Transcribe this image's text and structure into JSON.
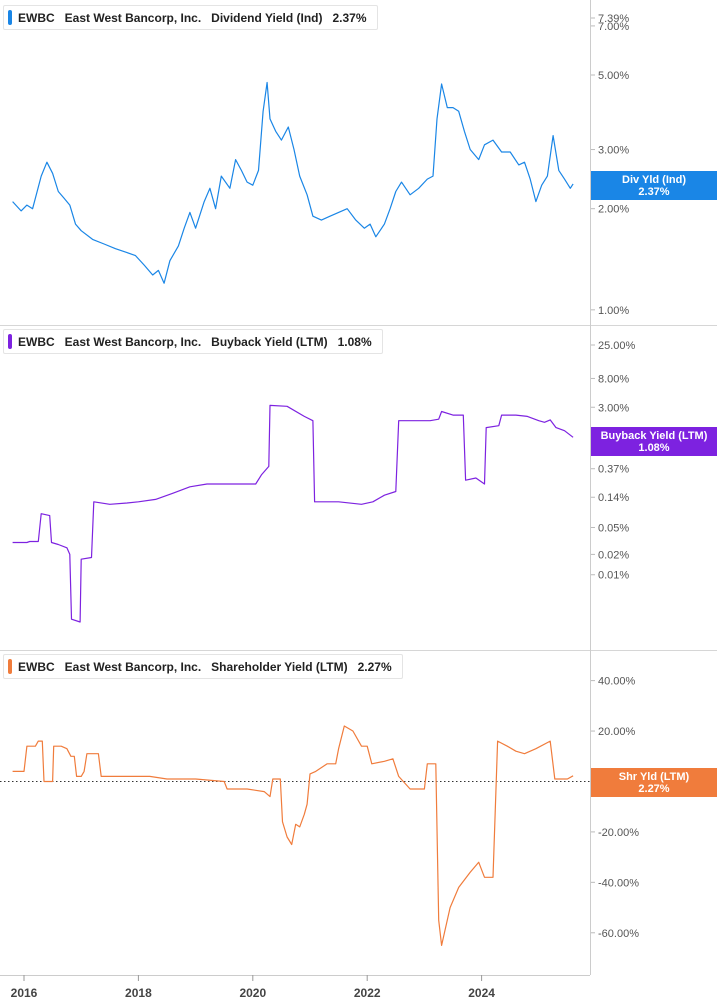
{
  "colors": {
    "dividend": "#1a86e6",
    "buyback": "#7d22e0",
    "shareholder": "#f07c3c",
    "divider": "#d6d6d6",
    "axis_text": "#555555"
  },
  "panels": [
    {
      "ticker": "EWBC",
      "company": "East West Bancorp, Inc.",
      "metric": "Dividend Yield (Ind)",
      "current": "2.37%",
      "tag_line1": "Div Yld (Ind)",
      "tag_line2": "2.37%"
    },
    {
      "ticker": "EWBC",
      "company": "East West Bancorp, Inc.",
      "metric": "Buyback Yield (LTM)",
      "current": "1.08%",
      "tag_line1": "Buyback Yield (LTM)",
      "tag_line2": "1.08%"
    },
    {
      "ticker": "EWBC",
      "company": "East West Bancorp, Inc.",
      "metric": "Shareholder Yield (LTM)",
      "current": "2.27%",
      "tag_line1": "Shr Yld (LTM)",
      "tag_line2": "2.27%"
    }
  ],
  "chart_data": [
    {
      "type": "line",
      "scale": "log",
      "series": [
        {
          "name": "Dividend Yield (Ind)",
          "points": [
            [
              2015.8,
              2.1
            ],
            [
              2015.95,
              1.97
            ],
            [
              2016.05,
              2.05
            ],
            [
              2016.15,
              2.0
            ],
            [
              2016.3,
              2.5
            ],
            [
              2016.4,
              2.75
            ],
            [
              2016.5,
              2.55
            ],
            [
              2016.6,
              2.25
            ],
            [
              2016.7,
              2.15
            ],
            [
              2016.8,
              2.05
            ],
            [
              2016.9,
              1.8
            ],
            [
              2017.0,
              1.72
            ],
            [
              2017.2,
              1.62
            ],
            [
              2017.4,
              1.57
            ],
            [
              2017.6,
              1.52
            ],
            [
              2017.8,
              1.48
            ],
            [
              2017.95,
              1.45
            ],
            [
              2018.1,
              1.36
            ],
            [
              2018.25,
              1.27
            ],
            [
              2018.35,
              1.31
            ],
            [
              2018.45,
              1.2
            ],
            [
              2018.55,
              1.4
            ],
            [
              2018.7,
              1.55
            ],
            [
              2018.8,
              1.75
            ],
            [
              2018.9,
              1.95
            ],
            [
              2019.0,
              1.75
            ],
            [
              2019.15,
              2.1
            ],
            [
              2019.25,
              2.3
            ],
            [
              2019.35,
              2.0
            ],
            [
              2019.45,
              2.5
            ],
            [
              2019.6,
              2.3
            ],
            [
              2019.7,
              2.8
            ],
            [
              2019.8,
              2.6
            ],
            [
              2019.9,
              2.4
            ],
            [
              2020.0,
              2.35
            ],
            [
              2020.1,
              2.6
            ],
            [
              2020.18,
              3.9
            ],
            [
              2020.25,
              4.75
            ],
            [
              2020.3,
              3.7
            ],
            [
              2020.4,
              3.4
            ],
            [
              2020.5,
              3.2
            ],
            [
              2020.62,
              3.5
            ],
            [
              2020.72,
              3.0
            ],
            [
              2020.82,
              2.5
            ],
            [
              2020.95,
              2.2
            ],
            [
              2021.05,
              1.9
            ],
            [
              2021.2,
              1.85
            ],
            [
              2021.35,
              1.9
            ],
            [
              2021.5,
              1.95
            ],
            [
              2021.65,
              2.0
            ],
            [
              2021.8,
              1.85
            ],
            [
              2021.95,
              1.75
            ],
            [
              2022.05,
              1.8
            ],
            [
              2022.15,
              1.65
            ],
            [
              2022.3,
              1.8
            ],
            [
              2022.4,
              2.0
            ],
            [
              2022.5,
              2.25
            ],
            [
              2022.6,
              2.4
            ],
            [
              2022.75,
              2.2
            ],
            [
              2022.9,
              2.3
            ],
            [
              2023.05,
              2.45
            ],
            [
              2023.15,
              2.5
            ],
            [
              2023.22,
              3.7
            ],
            [
              2023.3,
              4.7
            ],
            [
              2023.4,
              4.0
            ],
            [
              2023.5,
              4.0
            ],
            [
              2023.6,
              3.9
            ],
            [
              2023.7,
              3.4
            ],
            [
              2023.8,
              3.0
            ],
            [
              2023.95,
              2.8
            ],
            [
              2024.05,
              3.1
            ],
            [
              2024.2,
              3.2
            ],
            [
              2024.35,
              2.95
            ],
            [
              2024.5,
              2.95
            ],
            [
              2024.65,
              2.7
            ],
            [
              2024.75,
              2.75
            ],
            [
              2024.85,
              2.45
            ],
            [
              2024.95,
              2.1
            ],
            [
              2025.05,
              2.35
            ],
            [
              2025.15,
              2.5
            ],
            [
              2025.25,
              3.3
            ],
            [
              2025.35,
              2.6
            ],
            [
              2025.45,
              2.45
            ],
            [
              2025.55,
              2.3
            ],
            [
              2025.6,
              2.37
            ]
          ]
        }
      ],
      "yticks": [
        "7.39%",
        "7.00%",
        "5.00%",
        "3.00%",
        "2.00%",
        "1.00%"
      ],
      "ylim": [
        0.92,
        7.39
      ]
    },
    {
      "type": "line",
      "scale": "log",
      "series": [
        {
          "name": "Buyback Yield (LTM)",
          "points": [
            [
              2015.8,
              0.03
            ],
            [
              2016.05,
              0.03
            ],
            [
              2016.1,
              0.031
            ],
            [
              2016.25,
              0.031
            ],
            [
              2016.3,
              0.08
            ],
            [
              2016.45,
              0.075
            ],
            [
              2016.48,
              0.03
            ],
            [
              2016.6,
              0.028
            ],
            [
              2016.75,
              0.025
            ],
            [
              2016.8,
              0.02
            ],
            [
              2016.83,
              0.0022
            ],
            [
              2016.98,
              0.002
            ],
            [
              2017.0,
              0.017
            ],
            [
              2017.18,
              0.018
            ],
            [
              2017.22,
              0.12
            ],
            [
              2017.5,
              0.11
            ],
            [
              2017.8,
              0.115
            ],
            [
              2018.0,
              0.12
            ],
            [
              2018.3,
              0.13
            ],
            [
              2018.6,
              0.16
            ],
            [
              2018.9,
              0.2
            ],
            [
              2019.2,
              0.22
            ],
            [
              2019.5,
              0.22
            ],
            [
              2019.8,
              0.22
            ],
            [
              2020.05,
              0.22
            ],
            [
              2020.15,
              0.3
            ],
            [
              2020.28,
              0.4
            ],
            [
              2020.3,
              3.2
            ],
            [
              2020.6,
              3.1
            ],
            [
              2020.9,
              2.2
            ],
            [
              2021.05,
              1.9
            ],
            [
              2021.08,
              0.12
            ],
            [
              2021.5,
              0.12
            ],
            [
              2021.9,
              0.11
            ],
            [
              2022.1,
              0.12
            ],
            [
              2022.3,
              0.15
            ],
            [
              2022.5,
              0.17
            ],
            [
              2022.55,
              1.9
            ],
            [
              2022.9,
              1.9
            ],
            [
              2023.1,
              1.9
            ],
            [
              2023.25,
              2.0
            ],
            [
              2023.3,
              2.6
            ],
            [
              2023.5,
              2.3
            ],
            [
              2023.68,
              2.3
            ],
            [
              2023.72,
              0.25
            ],
            [
              2023.9,
              0.27
            ],
            [
              2024.05,
              0.22
            ],
            [
              2024.08,
              1.5
            ],
            [
              2024.3,
              1.6
            ],
            [
              2024.35,
              2.3
            ],
            [
              2024.6,
              2.3
            ],
            [
              2024.8,
              2.2
            ],
            [
              2025.0,
              1.9
            ],
            [
              2025.1,
              1.8
            ],
            [
              2025.2,
              1.95
            ],
            [
              2025.3,
              1.5
            ],
            [
              2025.45,
              1.35
            ],
            [
              2025.6,
              1.08
            ]
          ]
        }
      ],
      "yticks": [
        "25.00%",
        "8.00%",
        "3.00%",
        "0.37%",
        "0.14%",
        "0.05%",
        "0.02%",
        "0.01%"
      ],
      "ylim": [
        0.002,
        25
      ]
    },
    {
      "type": "line",
      "scale": "linear",
      "series": [
        {
          "name": "Shareholder Yield (LTM)",
          "points": [
            [
              2015.8,
              4
            ],
            [
              2016.0,
              4
            ],
            [
              2016.05,
              14
            ],
            [
              2016.2,
              14
            ],
            [
              2016.25,
              16
            ],
            [
              2016.32,
              16
            ],
            [
              2016.35,
              0
            ],
            [
              2016.5,
              0
            ],
            [
              2016.52,
              14
            ],
            [
              2016.65,
              14
            ],
            [
              2016.75,
              13
            ],
            [
              2016.82,
              10
            ],
            [
              2016.88,
              10
            ],
            [
              2016.92,
              2
            ],
            [
              2017.0,
              2
            ],
            [
              2017.05,
              4
            ],
            [
              2017.1,
              11
            ],
            [
              2017.3,
              11
            ],
            [
              2017.35,
              2
            ],
            [
              2017.7,
              2
            ],
            [
              2018.2,
              2
            ],
            [
              2018.5,
              1
            ],
            [
              2019.0,
              1
            ],
            [
              2019.5,
              0
            ],
            [
              2019.55,
              -3
            ],
            [
              2019.9,
              -3
            ],
            [
              2020.2,
              -4
            ],
            [
              2020.3,
              -6
            ],
            [
              2020.35,
              1
            ],
            [
              2020.48,
              1
            ],
            [
              2020.52,
              -16
            ],
            [
              2020.6,
              -22
            ],
            [
              2020.68,
              -25
            ],
            [
              2020.75,
              -17
            ],
            [
              2020.82,
              -18
            ],
            [
              2020.9,
              -13
            ],
            [
              2020.95,
              -9
            ],
            [
              2021.0,
              3
            ],
            [
              2021.1,
              4
            ],
            [
              2021.3,
              7
            ],
            [
              2021.45,
              7
            ],
            [
              2021.5,
              13
            ],
            [
              2021.6,
              22
            ],
            [
              2021.75,
              20
            ],
            [
              2021.9,
              14
            ],
            [
              2022.0,
              14
            ],
            [
              2022.08,
              7
            ],
            [
              2022.3,
              8
            ],
            [
              2022.45,
              9
            ],
            [
              2022.55,
              2
            ],
            [
              2022.75,
              -3
            ],
            [
              2022.95,
              -3
            ],
            [
              2023.0,
              -3
            ],
            [
              2023.05,
              7
            ],
            [
              2023.2,
              7
            ],
            [
              2023.25,
              -55
            ],
            [
              2023.3,
              -65
            ],
            [
              2023.45,
              -50
            ],
            [
              2023.6,
              -42
            ],
            [
              2023.8,
              -36
            ],
            [
              2023.95,
              -32
            ],
            [
              2024.05,
              -38
            ],
            [
              2024.2,
              -38
            ],
            [
              2024.28,
              16
            ],
            [
              2024.45,
              14
            ],
            [
              2024.6,
              12
            ],
            [
              2024.75,
              11
            ],
            [
              2024.95,
              13
            ],
            [
              2025.2,
              16
            ],
            [
              2025.28,
              1
            ],
            [
              2025.5,
              1
            ],
            [
              2025.6,
              2.27
            ]
          ]
        }
      ],
      "yticks": [
        "40.00%",
        "20.00%",
        "0.00%",
        "-20.00%",
        "-40.00%",
        "-60.00%"
      ],
      "ylim": [
        -70,
        45
      ]
    }
  ],
  "xaxis": {
    "ticks": [
      "2016",
      "2018",
      "2020",
      "2022",
      "2024"
    ]
  }
}
